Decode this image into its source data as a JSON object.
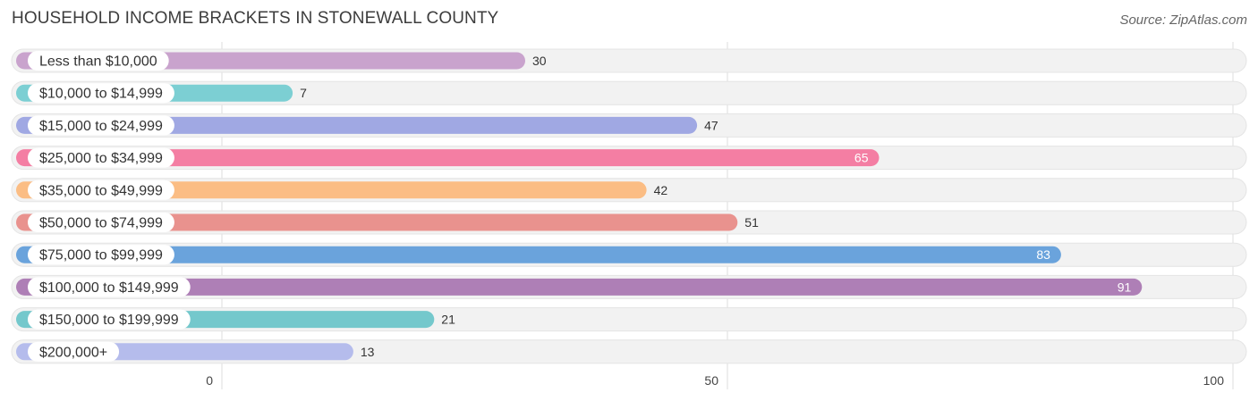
{
  "title": "HOUSEHOLD INCOME BRACKETS IN STONEWALL COUNTY",
  "source": "Source: ZipAtlas.com",
  "chart_data": {
    "type": "bar",
    "orientation": "horizontal",
    "categories": [
      "Less than $10,000",
      "$10,000 to $14,999",
      "$15,000 to $24,999",
      "$25,000 to $34,999",
      "$35,000 to $49,999",
      "$50,000 to $74,999",
      "$75,000 to $99,999",
      "$100,000 to $149,999",
      "$150,000 to $199,999",
      "$200,000+"
    ],
    "values": [
      30,
      7,
      47,
      65,
      42,
      51,
      83,
      91,
      21,
      13
    ],
    "colors": [
      "#c9a3cd",
      "#7ccfd3",
      "#a0a8e3",
      "#f47ea3",
      "#fbbd84",
      "#e9928e",
      "#6aa3dc",
      "#ae7fb6",
      "#74c8cc",
      "#b5bcec"
    ],
    "xlim": [
      0,
      100
    ],
    "xticks": [
      0,
      50,
      100
    ],
    "grid": true
  }
}
